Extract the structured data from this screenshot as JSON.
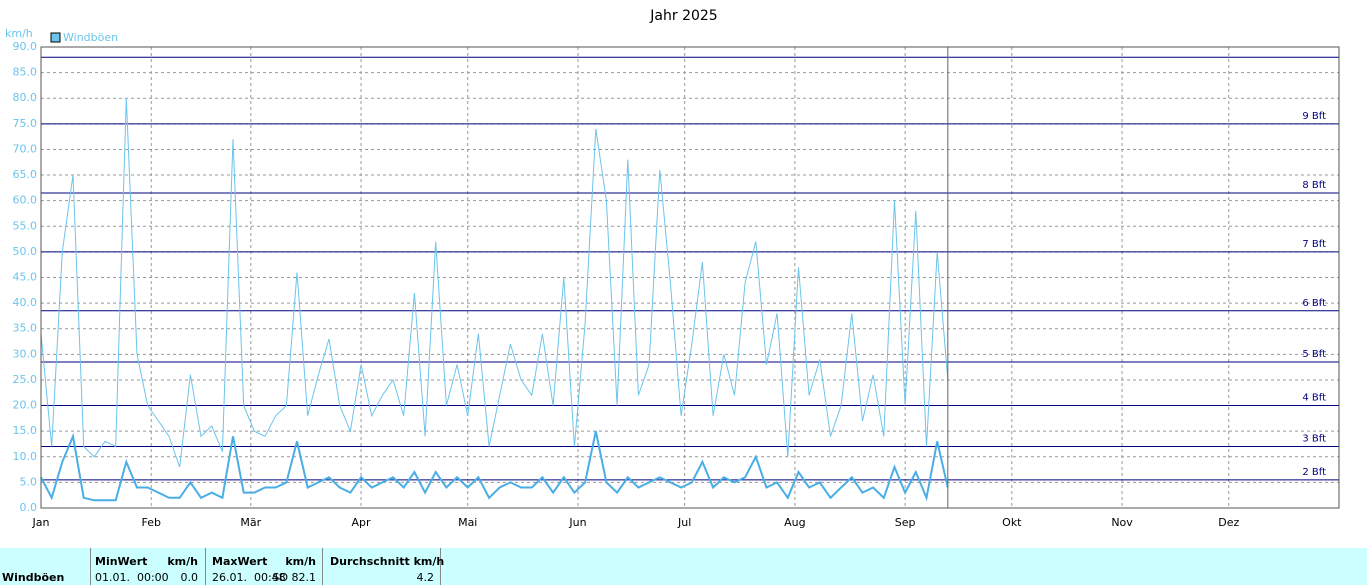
{
  "chart_data": {
    "type": "line",
    "title": "Jahr 2025",
    "ylabel": "km/h",
    "x": [
      0,
      3,
      6,
      9,
      12,
      15,
      18,
      21,
      24,
      27,
      30,
      33,
      36,
      39,
      42,
      45,
      48,
      51,
      54,
      57,
      60,
      63,
      66,
      69,
      72,
      75,
      78,
      81,
      84,
      87,
      90,
      93,
      96,
      99,
      102,
      105,
      108,
      111,
      114,
      117,
      120,
      123,
      126,
      129,
      132,
      135,
      138,
      141,
      144,
      147,
      150,
      153,
      156,
      159,
      162,
      165,
      168,
      171,
      174,
      177,
      180,
      183,
      186,
      189,
      192,
      195,
      198,
      201,
      204,
      207,
      210,
      213,
      216,
      219,
      222,
      225,
      228,
      231,
      234,
      237,
      240,
      243,
      246,
      249,
      252,
      255
    ],
    "series": [
      {
        "name": "Windböen",
        "color": "#6cc4ec",
        "width": 1,
        "values": [
          34,
          12,
          50,
          65,
          12,
          10,
          13,
          12,
          80,
          30,
          20,
          17,
          14,
          8,
          26,
          14,
          16,
          11,
          72,
          20,
          15,
          14,
          18,
          20,
          46,
          18,
          26,
          33,
          20,
          15,
          28,
          18,
          22,
          25,
          18,
          42,
          14,
          52,
          20,
          28,
          18,
          34,
          12,
          22,
          32,
          25,
          22,
          34,
          20,
          45,
          12,
          36,
          74,
          60,
          20,
          68,
          22,
          28,
          66,
          44,
          18,
          32,
          48,
          18,
          30,
          22,
          44,
          52,
          28,
          38,
          10,
          47,
          22,
          29,
          14,
          20,
          38,
          17,
          26,
          14,
          60,
          20,
          58,
          12,
          50,
          25
        ]
      },
      {
        "color": "#4aaee6",
        "width": 2,
        "values": [
          6,
          2,
          9,
          14,
          2,
          1.5,
          1.5,
          1.5,
          9,
          4,
          4,
          3,
          2,
          2,
          5,
          2,
          3,
          2,
          14,
          3,
          3,
          4,
          4,
          5,
          13,
          4,
          5,
          6,
          4,
          3,
          6,
          4,
          5,
          6,
          4,
          7,
          3,
          7,
          4,
          6,
          4,
          6,
          2,
          4,
          5,
          4,
          4,
          6,
          3,
          6,
          3,
          5,
          15,
          5,
          3,
          6,
          4,
          5,
          6,
          5,
          4,
          5,
          9,
          4,
          6,
          5,
          6,
          10,
          4,
          5,
          2,
          7,
          4,
          5,
          2,
          4,
          6,
          3,
          4,
          2,
          8,
          3,
          7,
          2,
          13,
          4
        ]
      }
    ],
    "xlim": [
      0,
      365
    ],
    "xticks": [
      {
        "value": 0,
        "label": "Jan"
      },
      {
        "value": 31,
        "label": "Feb"
      },
      {
        "value": 59,
        "label": "Mär"
      },
      {
        "value": 90,
        "label": "Apr"
      },
      {
        "value": 120,
        "label": "Mai"
      },
      {
        "value": 151,
        "label": "Jun"
      },
      {
        "value": 181,
        "label": "Jul"
      },
      {
        "value": 212,
        "label": "Aug"
      },
      {
        "value": 243,
        "label": "Sep"
      },
      {
        "value": 273,
        "label": "Okt"
      },
      {
        "value": 304,
        "label": "Nov"
      },
      {
        "value": 334,
        "label": "Dez"
      }
    ],
    "ylim": [
      0,
      90
    ],
    "yticks": [
      {
        "value": 0,
        "label": "0.0"
      },
      {
        "value": 5,
        "label": "5.0"
      },
      {
        "value": 10,
        "label": "10.0"
      },
      {
        "value": 15,
        "label": "15.0"
      },
      {
        "value": 20,
        "label": "20.0"
      },
      {
        "value": 25,
        "label": "25.0"
      },
      {
        "value": 30,
        "label": "30.0"
      },
      {
        "value": 35,
        "label": "35.0"
      },
      {
        "value": 40,
        "label": "40.0"
      },
      {
        "value": 45,
        "label": "45.0"
      },
      {
        "value": 50,
        "label": "50.0"
      },
      {
        "value": 55,
        "label": "55.0"
      },
      {
        "value": 60,
        "label": "60.0"
      },
      {
        "value": 65,
        "label": "65.0"
      },
      {
        "value": 70,
        "label": "70.0"
      },
      {
        "value": 75,
        "label": "75.0"
      },
      {
        "value": 80,
        "label": "80.0"
      },
      {
        "value": 85,
        "label": "85.0"
      },
      {
        "value": 90,
        "label": "90.0"
      }
    ],
    "grid": true,
    "reference_lines": [
      {
        "value": 5.5,
        "label": "2 Bft"
      },
      {
        "value": 12,
        "label": "3 Bft"
      },
      {
        "value": 20,
        "label": "4 Bft"
      },
      {
        "value": 28.5,
        "label": "5 Bft"
      },
      {
        "value": 38.5,
        "label": "6 Bft"
      },
      {
        "value": 50,
        "label": "7 Bft"
      },
      {
        "value": 61.5,
        "label": "8 Bft"
      },
      {
        "value": 75,
        "label": "9 Bft"
      },
      {
        "value": 88
      }
    ],
    "reference_color": "#000080"
  },
  "summary": {
    "row_label": "Windböen",
    "min": {
      "header": "MinWert",
      "unit": "km/h",
      "date": "01.01.  00:00",
      "value": "0.0"
    },
    "max": {
      "header": "MaxWert",
      "unit": "km/h",
      "date": "26.01.  00:48",
      "value": "SO 82.1"
    },
    "avg": {
      "header": "Durchschnitt km/h",
      "value": "4.2"
    }
  }
}
